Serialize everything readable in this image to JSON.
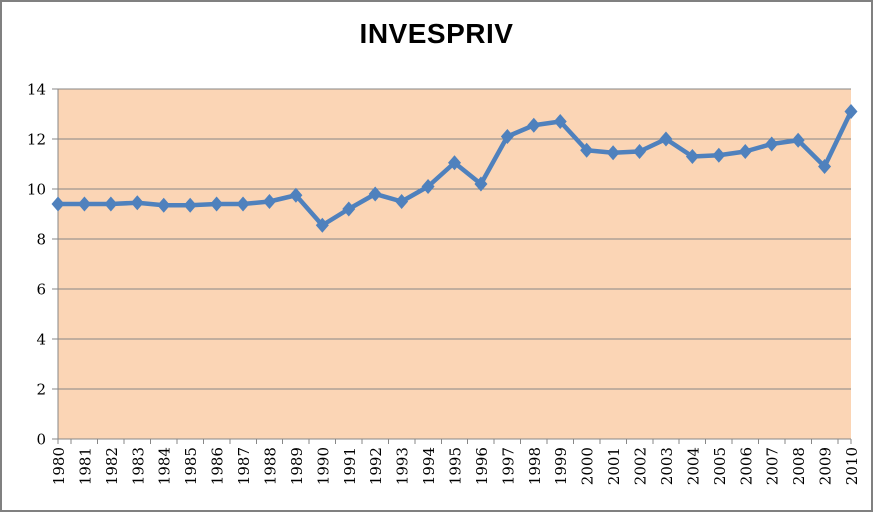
{
  "frame": {
    "background": "#ffffff",
    "border_color": "#808080"
  },
  "chart_data": {
    "type": "line",
    "title": "INVESPRIV",
    "xlabel": "",
    "ylabel": "",
    "x": [
      "1980",
      "1981",
      "1982",
      "1983",
      "1984",
      "1985",
      "1986",
      "1987",
      "1988",
      "1989",
      "1990",
      "1991",
      "1992",
      "1993",
      "1994",
      "1995",
      "1996",
      "1997",
      "1998",
      "1999",
      "2000",
      "2001",
      "2002",
      "2003",
      "2004",
      "2005",
      "2006",
      "2007",
      "2008",
      "2009",
      "2010"
    ],
    "series": [
      {
        "name": "INVESPRIV",
        "color": "#4F81BD",
        "marker": "diamond",
        "values": [
          9.4,
          9.4,
          9.4,
          9.45,
          9.35,
          9.35,
          9.4,
          9.4,
          9.5,
          9.75,
          8.55,
          9.2,
          9.8,
          9.5,
          10.1,
          11.05,
          10.2,
          12.1,
          12.55,
          12.7,
          11.55,
          11.45,
          11.5,
          12.0,
          11.3,
          11.35,
          11.5,
          11.8,
          11.95,
          10.9,
          13.1
        ]
      }
    ],
    "ylim": [
      0,
      14
    ],
    "yticks": [
      0,
      2,
      4,
      6,
      8,
      10,
      12,
      14
    ],
    "grid": true,
    "legend_position": "none",
    "plot_background": "#FBD5B5",
    "gridline_color": "#878787",
    "axis_color": "#878787",
    "tick_label_color": "#000000",
    "title_color": "#000000"
  }
}
